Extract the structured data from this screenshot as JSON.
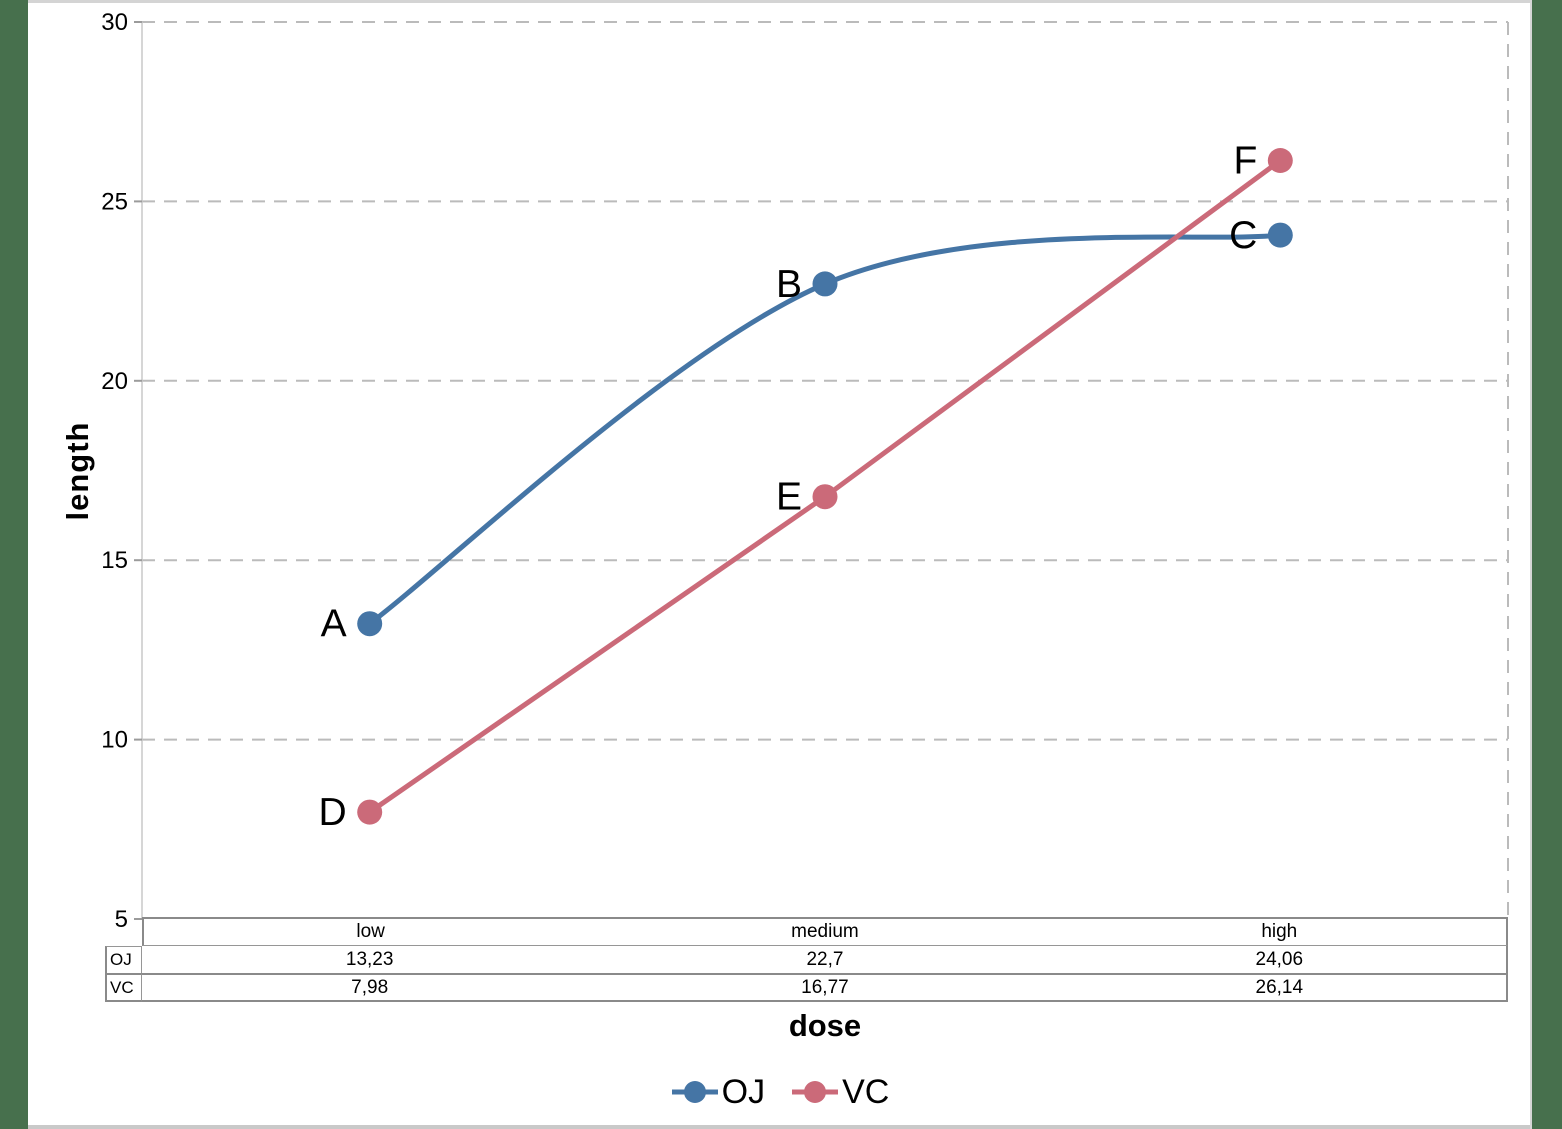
{
  "frame": {
    "side_bar_color": "#47704d",
    "hairline_color": "#d4d4d4"
  },
  "chart_data": {
    "type": "line",
    "title": "",
    "xlabel": "dose",
    "ylabel": "length",
    "categories": [
      "low",
      "medium",
      "high"
    ],
    "series": [
      {
        "name": "OJ",
        "values": [
          13.23,
          22.7,
          24.06
        ],
        "color": "#4575a5",
        "smooth": true,
        "point_labels": [
          "A",
          "B",
          "C"
        ]
      },
      {
        "name": "VC",
        "values": [
          7.98,
          16.77,
          26.14
        ],
        "color": "#cb6a79",
        "smooth": false,
        "point_labels": [
          "D",
          "E",
          "F"
        ]
      }
    ],
    "ylim": [
      5,
      30
    ],
    "yticks": [
      5,
      10,
      15,
      20,
      25,
      30
    ],
    "grid": "horizontal-dashed",
    "grid_color": "#bbbbbb",
    "axis_color": "#c8c8c8",
    "legend_position": "bottom"
  },
  "axis_titles": {
    "x": "dose",
    "y": "length"
  },
  "table": {
    "col_headers": [
      "low",
      "medium",
      "high"
    ],
    "rows": [
      {
        "label": "OJ",
        "cells": [
          "13,23",
          "22,7",
          "24,06"
        ]
      },
      {
        "label": "VC",
        "cells": [
          "7,98",
          "16,77",
          "26,14"
        ]
      }
    ]
  },
  "legend": {
    "items": [
      "OJ",
      "VC"
    ]
  }
}
